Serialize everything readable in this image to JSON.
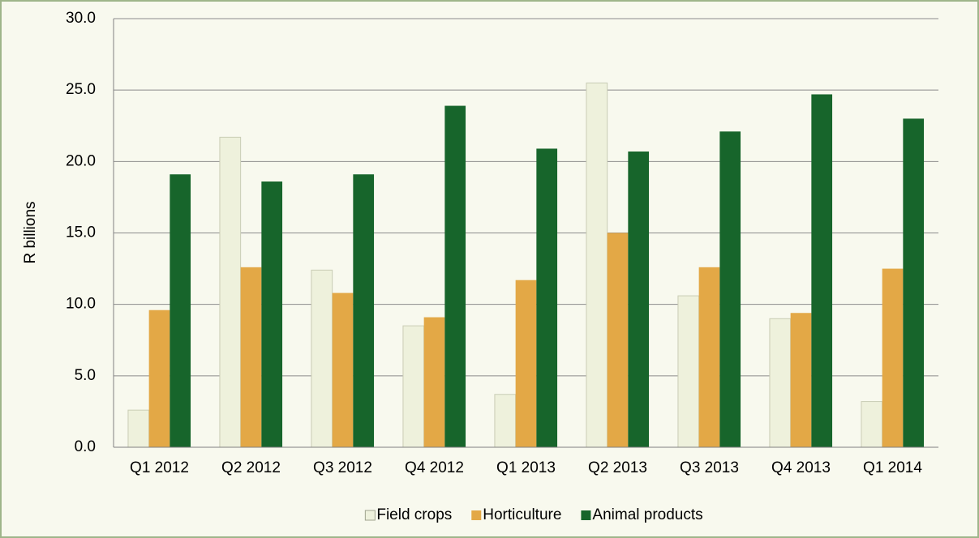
{
  "chart_data": {
    "type": "bar",
    "y_label": "R billions",
    "categories": [
      "Q1 2012",
      "Q2 2012",
      "Q3 2012",
      "Q4 2012",
      "Q1 2013",
      "Q2 2013",
      "Q3 2013",
      "Q4 2013",
      "Q1 2014"
    ],
    "series": [
      {
        "name": "Field crops",
        "color": "#eef1dc",
        "values": [
          2.6,
          21.7,
          12.4,
          8.5,
          3.7,
          25.5,
          10.6,
          9.0,
          3.2
        ]
      },
      {
        "name": "Horticulture",
        "color": "#e3a846",
        "values": [
          9.6,
          12.6,
          10.8,
          9.1,
          11.7,
          15.0,
          12.6,
          9.4,
          12.5
        ]
      },
      {
        "name": "Animal products",
        "color": "#17652b",
        "values": [
          19.1,
          18.6,
          19.1,
          23.9,
          20.9,
          20.7,
          22.1,
          24.7,
          23.0
        ]
      }
    ],
    "ylim": [
      0,
      30
    ],
    "yticks": [
      {
        "value": 0,
        "label": "0.0"
      },
      {
        "value": 5,
        "label": "5.0"
      },
      {
        "value": 10,
        "label": "10.0"
      },
      {
        "value": 15,
        "label": "15.0"
      },
      {
        "value": 20,
        "label": "20.0"
      },
      {
        "value": 25,
        "label": "25.0"
      },
      {
        "value": 30,
        "label": "30.0"
      }
    ],
    "grid": true,
    "legend": "bottom"
  }
}
